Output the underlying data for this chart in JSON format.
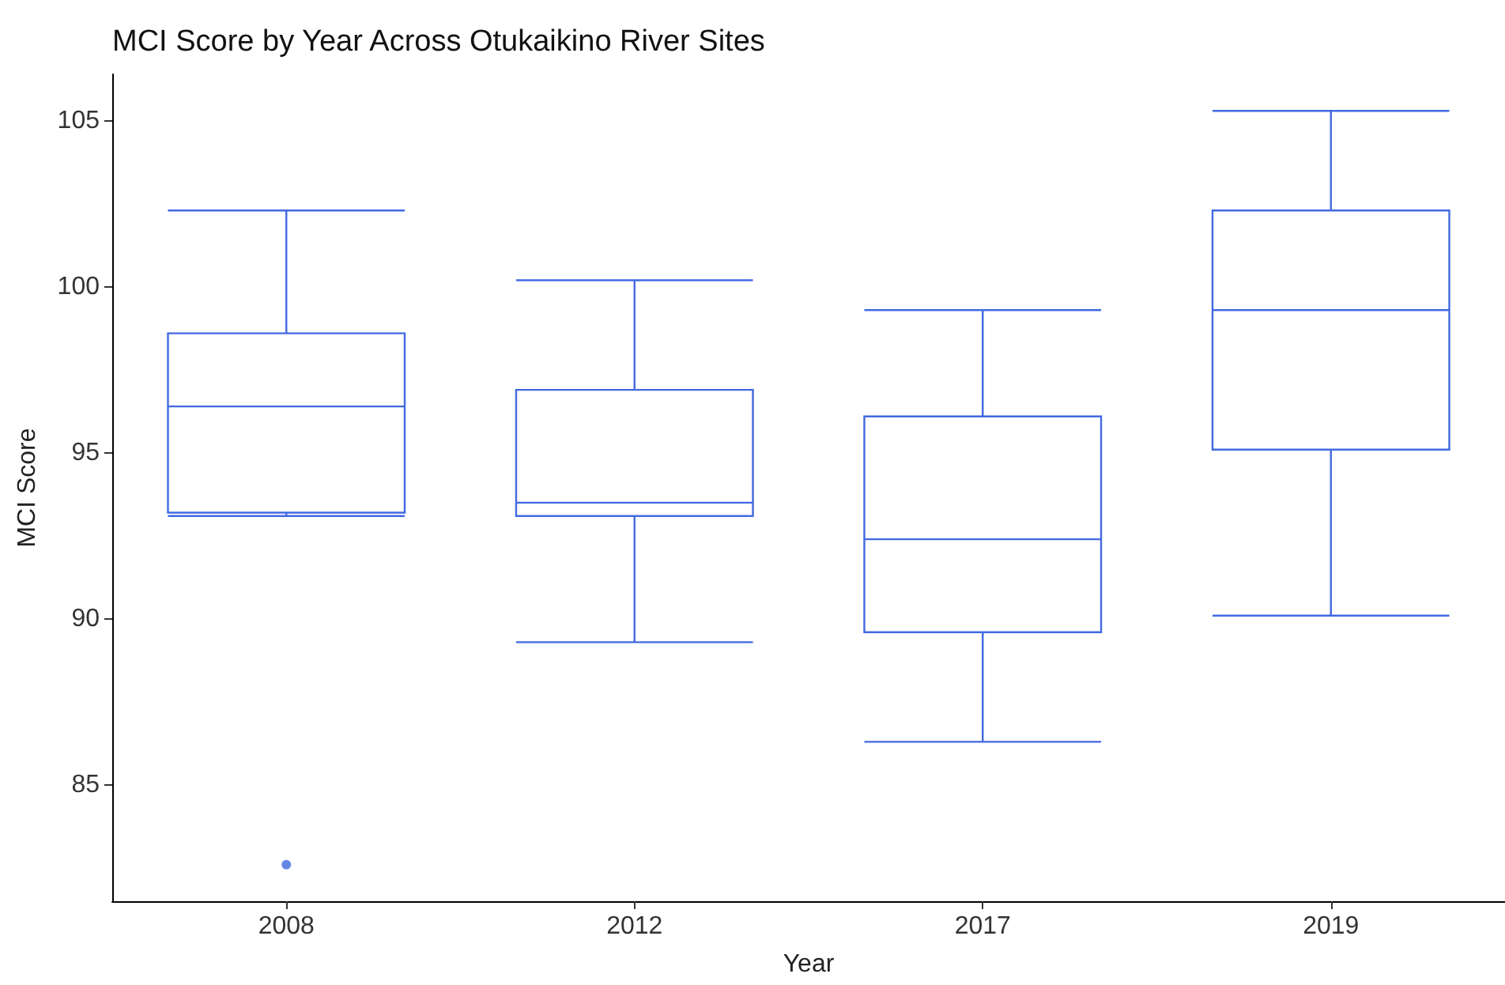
{
  "chart_data": {
    "type": "box",
    "title": "MCI Score by Year Across Otukaikino River Sites",
    "xlabel": "Year",
    "ylabel": "MCI Score",
    "categories": [
      "2008",
      "2012",
      "2017",
      "2019"
    ],
    "series": [
      {
        "color": "#4169e1",
        "boxes": [
          {
            "low": 93.1,
            "q1": 93.2,
            "median": 96.4,
            "q3": 98.6,
            "high": 102.3,
            "outliers": [
              82.6
            ]
          },
          {
            "low": 89.3,
            "q1": 93.1,
            "median": 93.5,
            "q3": 96.9,
            "high": 100.2
          },
          {
            "low": 86.3,
            "q1": 89.6,
            "median": 92.4,
            "q3": 96.1,
            "high": 99.3
          },
          {
            "low": 90.1,
            "q1": 95.1,
            "median": 99.3,
            "q3": 102.3,
            "high": 105.3
          }
        ]
      }
    ],
    "ylim": [
      81.5,
      106.4
    ],
    "yticks": [
      85,
      90,
      95,
      100,
      105
    ]
  }
}
